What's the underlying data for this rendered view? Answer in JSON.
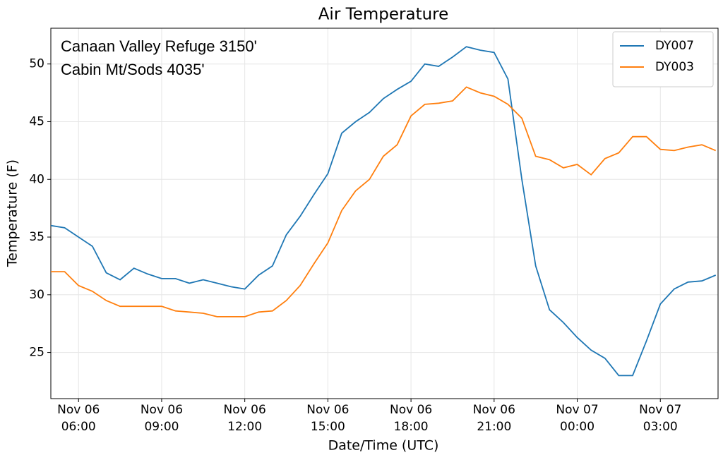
{
  "chart_data": {
    "type": "line",
    "title": "Air Temperature",
    "x_label": "Date/Time (UTC)",
    "y_label": "Temperature (F)",
    "annotations": [
      {
        "text": "Canaan Valley Refuge 3150'",
        "color": "#2386dc"
      },
      {
        "text": "Cabin Mt/Sods 4035'",
        "color": "#f59d22"
      }
    ],
    "x": [
      "Nov 06 05:00",
      "Nov 06 05:30",
      "Nov 06 06:00",
      "Nov 06 06:30",
      "Nov 06 07:00",
      "Nov 06 07:30",
      "Nov 06 08:00",
      "Nov 06 08:30",
      "Nov 06 09:00",
      "Nov 06 09:30",
      "Nov 06 10:00",
      "Nov 06 10:30",
      "Nov 06 11:00",
      "Nov 06 11:30",
      "Nov 06 12:00",
      "Nov 06 12:30",
      "Nov 06 13:00",
      "Nov 06 13:30",
      "Nov 06 14:00",
      "Nov 06 14:30",
      "Nov 06 15:00",
      "Nov 06 15:30",
      "Nov 06 16:00",
      "Nov 06 16:30",
      "Nov 06 17:00",
      "Nov 06 17:30",
      "Nov 06 18:00",
      "Nov 06 18:30",
      "Nov 06 19:00",
      "Nov 06 19:30",
      "Nov 06 20:00",
      "Nov 06 20:30",
      "Nov 06 21:00",
      "Nov 06 21:30",
      "Nov 06 22:00",
      "Nov 06 22:30",
      "Nov 06 23:00",
      "Nov 06 23:30",
      "Nov 07 00:00",
      "Nov 07 00:30",
      "Nov 07 01:00",
      "Nov 07 01:30",
      "Nov 07 02:00",
      "Nov 07 02:30",
      "Nov 07 03:00",
      "Nov 07 03:30",
      "Nov 07 04:00",
      "Nov 07 04:30",
      "Nov 07 05:00"
    ],
    "series": [
      {
        "name": "DY007",
        "color": "#1f77b4",
        "values": [
          36,
          35.8,
          35,
          34.2,
          31.9,
          31.3,
          32.3,
          31.8,
          31.4,
          31.4,
          31,
          31.3,
          31,
          30.7,
          30.5,
          31.7,
          32.5,
          35.2,
          36.8,
          38.7,
          40.5,
          44,
          45,
          45.8,
          47,
          47.8,
          48.5,
          50,
          49.8,
          50.6,
          51.5,
          51.2,
          51,
          48.7,
          40,
          32.5,
          28.7,
          27.6,
          26.3,
          25.2,
          24.5,
          23,
          23,
          26,
          29.2,
          30.5,
          31.1,
          31.2,
          31.7
        ]
      },
      {
        "name": "DY003",
        "color": "#ff7f0e",
        "values": [
          32,
          32,
          30.8,
          30.3,
          29.5,
          29,
          29,
          29,
          29,
          28.6,
          28.5,
          28.4,
          28.1,
          28.1,
          28.1,
          28.5,
          28.6,
          29.5,
          30.8,
          32.7,
          34.5,
          37.3,
          39,
          40,
          42,
          43,
          45.5,
          46.5,
          46.6,
          46.8,
          48,
          47.5,
          47.2,
          46.5,
          45.3,
          42,
          41.7,
          41,
          41.3,
          40.4,
          41.8,
          42.3,
          43.7,
          43.7,
          42.6,
          42.5,
          42.8,
          43,
          42.5
        ]
      }
    ],
    "xlim": [
      "Nov 06 05:00",
      "Nov 07 05:05"
    ],
    "xticks": [
      {
        "value": "Nov 06 06:00",
        "label": [
          "Nov 06",
          "06:00"
        ]
      },
      {
        "value": "Nov 06 09:00",
        "label": [
          "Nov 06",
          "09:00"
        ]
      },
      {
        "value": "Nov 06 12:00",
        "label": [
          "Nov 06",
          "12:00"
        ]
      },
      {
        "value": "Nov 06 15:00",
        "label": [
          "Nov 06",
          "15:00"
        ]
      },
      {
        "value": "Nov 06 18:00",
        "label": [
          "Nov 06",
          "18:00"
        ]
      },
      {
        "value": "Nov 06 21:00",
        "label": [
          "Nov 06",
          "21:00"
        ]
      },
      {
        "value": "Nov 07 00:00",
        "label": [
          "Nov 07",
          "00:00"
        ]
      },
      {
        "value": "Nov 07 03:00",
        "label": [
          "Nov 07",
          "03:00"
        ]
      }
    ],
    "ylim": [
      21,
      53.1
    ],
    "yticks": [
      25,
      30,
      35,
      40,
      45,
      50
    ],
    "grid": true,
    "legend": "upper right"
  }
}
